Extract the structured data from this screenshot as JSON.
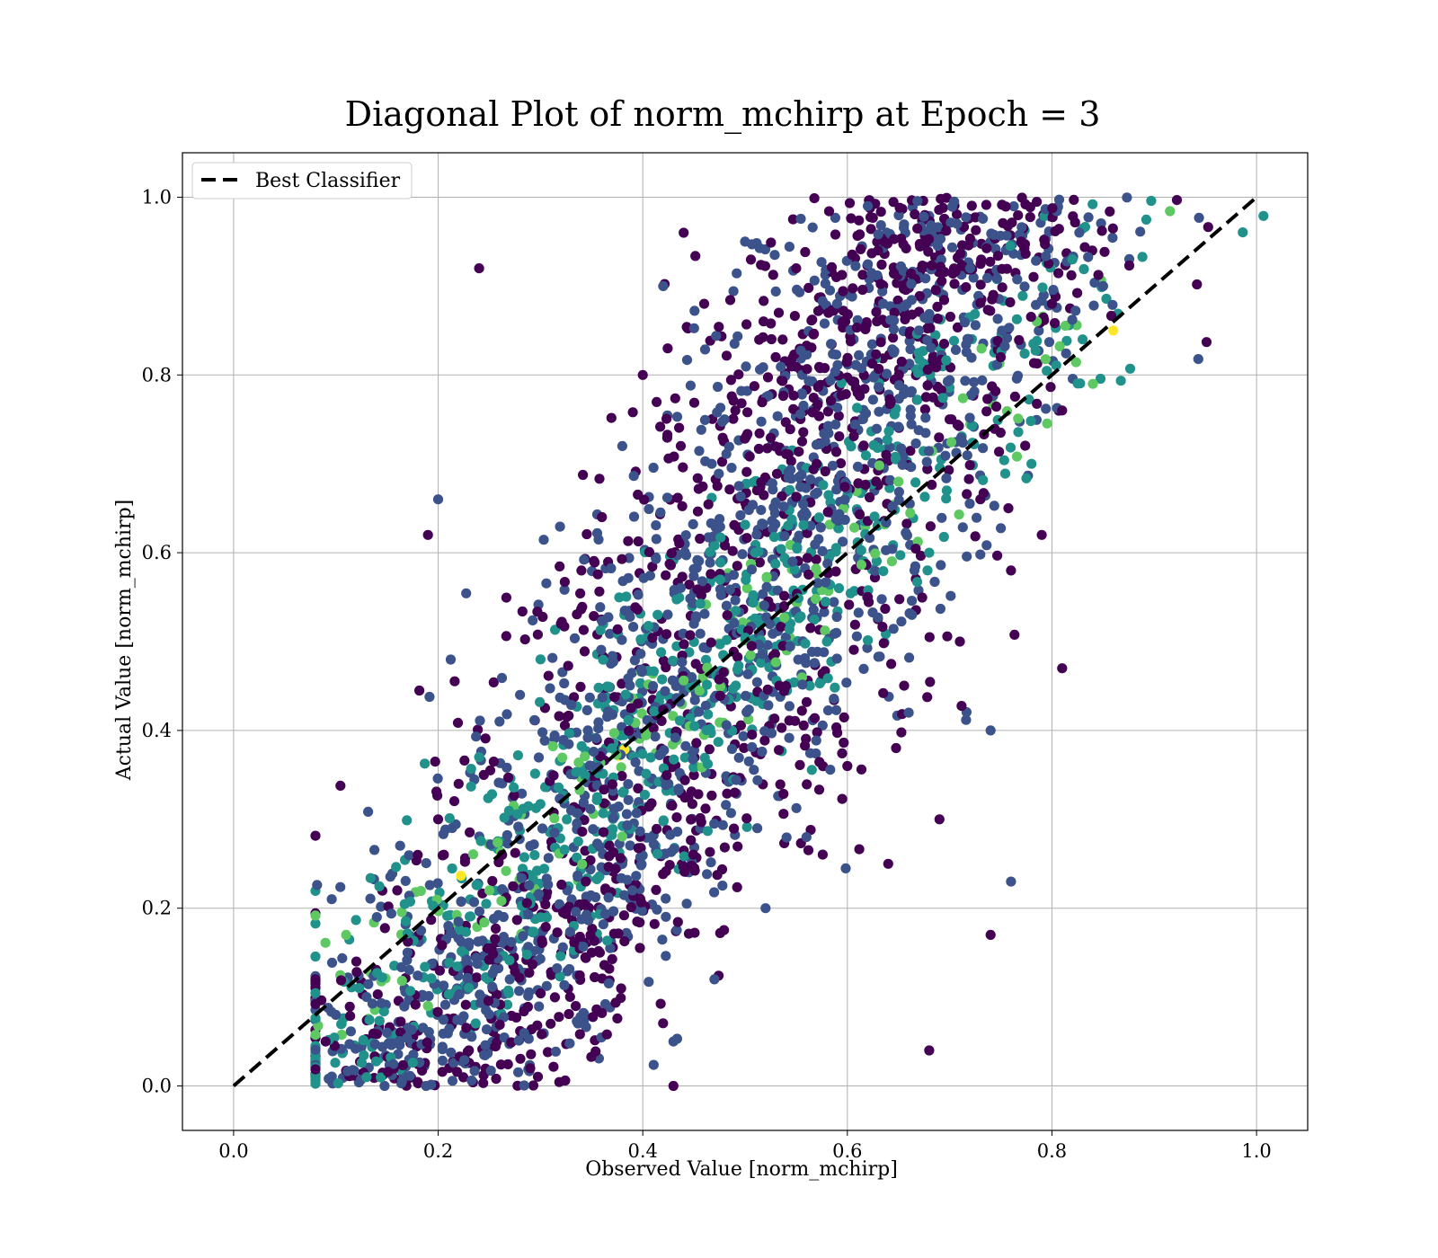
{
  "chart_data": {
    "type": "scatter",
    "title": "Diagonal Plot of norm_mchirp at Epoch = 3",
    "xlabel": "Observed Value [norm_mchirp]",
    "ylabel": "Actual Value [norm_mchirp]",
    "xlim": [
      -0.05,
      1.05
    ],
    "ylim": [
      -0.05,
      1.05
    ],
    "xticks": [
      0.0,
      0.2,
      0.4,
      0.6,
      0.8,
      1.0
    ],
    "yticks": [
      0.0,
      0.2,
      0.4,
      0.6,
      0.8,
      1.0
    ],
    "xtick_labels": [
      "0.0",
      "0.2",
      "0.4",
      "0.6",
      "0.8",
      "1.0"
    ],
    "ytick_labels": [
      "0.0",
      "0.2",
      "0.4",
      "0.6",
      "0.8",
      "1.0"
    ],
    "grid": true,
    "legend_position": "top-left",
    "colormap": "viridis",
    "series": [
      {
        "name": "Best Classifier",
        "kind": "line",
        "style": "dashed",
        "color": "#000000",
        "x": [
          0.0,
          1.0
        ],
        "y": [
          0.0,
          1.0
        ]
      },
      {
        "kind": "scatter",
        "color_range": [
          "#440154",
          "#3b528b",
          "#21918c",
          "#5ec962",
          "#fde725"
        ],
        "points": [
          [
            0.08,
            0.12
          ],
          [
            0.09,
            0.05
          ],
          [
            0.1,
            0.08
          ],
          [
            0.11,
            0.17
          ],
          [
            0.12,
            0.14
          ],
          [
            0.13,
            0.1
          ],
          [
            0.14,
            0.19
          ],
          [
            0.15,
            0.06
          ],
          [
            0.16,
            0.22
          ],
          [
            0.17,
            0.15
          ],
          [
            0.18,
            0.26
          ],
          [
            0.19,
            0.09
          ],
          [
            0.2,
            0.3
          ],
          [
            0.21,
            0.18
          ],
          [
            0.22,
            0.34
          ],
          [
            0.23,
            0.04
          ],
          [
            0.24,
            0.37
          ],
          [
            0.25,
            0.22
          ],
          [
            0.26,
            0.41
          ],
          [
            0.27,
            0.12
          ],
          [
            0.28,
            0.44
          ],
          [
            0.29,
            0.27
          ],
          [
            0.3,
            0.48
          ],
          [
            0.31,
            0.07
          ],
          [
            0.32,
            0.52
          ],
          [
            0.33,
            0.31
          ],
          [
            0.34,
            0.58
          ],
          [
            0.35,
            0.15
          ],
          [
            0.36,
            0.64
          ],
          [
            0.37,
            0.38
          ],
          [
            0.38,
            0.72
          ],
          [
            0.39,
            0.22
          ],
          [
            0.4,
            0.8
          ],
          [
            0.41,
            0.45
          ],
          [
            0.42,
            0.9
          ],
          [
            0.43,
            0.05
          ],
          [
            0.44,
            0.96
          ],
          [
            0.45,
            0.52
          ],
          [
            0.46,
            0.88
          ],
          [
            0.47,
            0.12
          ],
          [
            0.48,
            0.75
          ],
          [
            0.49,
            0.33
          ],
          [
            0.5,
            0.95
          ],
          [
            0.51,
            0.6
          ],
          [
            0.52,
            0.2
          ],
          [
            0.53,
            0.82
          ],
          [
            0.54,
            0.45
          ],
          [
            0.55,
            0.92
          ],
          [
            0.56,
            0.28
          ],
          [
            0.57,
            0.7
          ],
          [
            0.58,
            0.5
          ],
          [
            0.59,
            0.88
          ],
          [
            0.6,
            0.36
          ],
          [
            0.61,
            0.78
          ],
          [
            0.62,
            0.55
          ],
          [
            0.63,
            0.94
          ],
          [
            0.64,
            0.25
          ],
          [
            0.65,
            0.68
          ],
          [
            0.66,
            0.42
          ],
          [
            0.67,
            0.85
          ],
          [
            0.68,
            0.6
          ],
          [
            0.69,
            0.3
          ],
          [
            0.7,
            0.75
          ],
          [
            0.71,
            0.5
          ],
          [
            0.72,
            0.92
          ],
          [
            0.73,
            0.66
          ],
          [
            0.74,
            0.4
          ],
          [
            0.75,
            0.82
          ],
          [
            0.76,
            0.58
          ],
          [
            0.77,
            0.95
          ],
          [
            0.78,
            0.7
          ],
          [
            0.79,
            0.62
          ],
          [
            0.8,
            0.88
          ],
          [
            0.81,
            0.76
          ],
          [
            0.82,
            0.93
          ],
          [
            0.83,
            0.84
          ],
          [
            0.84,
            0.79
          ],
          [
            0.85,
            0.9
          ],
          [
            0.86,
            0.85
          ],
          [
            0.62,
            0.99
          ],
          [
            0.24,
            0.92
          ],
          [
            0.2,
            0.66
          ],
          [
            0.19,
            0.62
          ],
          [
            0.81,
            0.47
          ],
          [
            0.76,
            0.23
          ],
          [
            0.74,
            0.17
          ],
          [
            0.13,
            0.01
          ],
          [
            0.43,
            0.0
          ],
          [
            0.29,
            0.02
          ],
          [
            0.68,
            0.04
          ]
        ]
      }
    ]
  }
}
